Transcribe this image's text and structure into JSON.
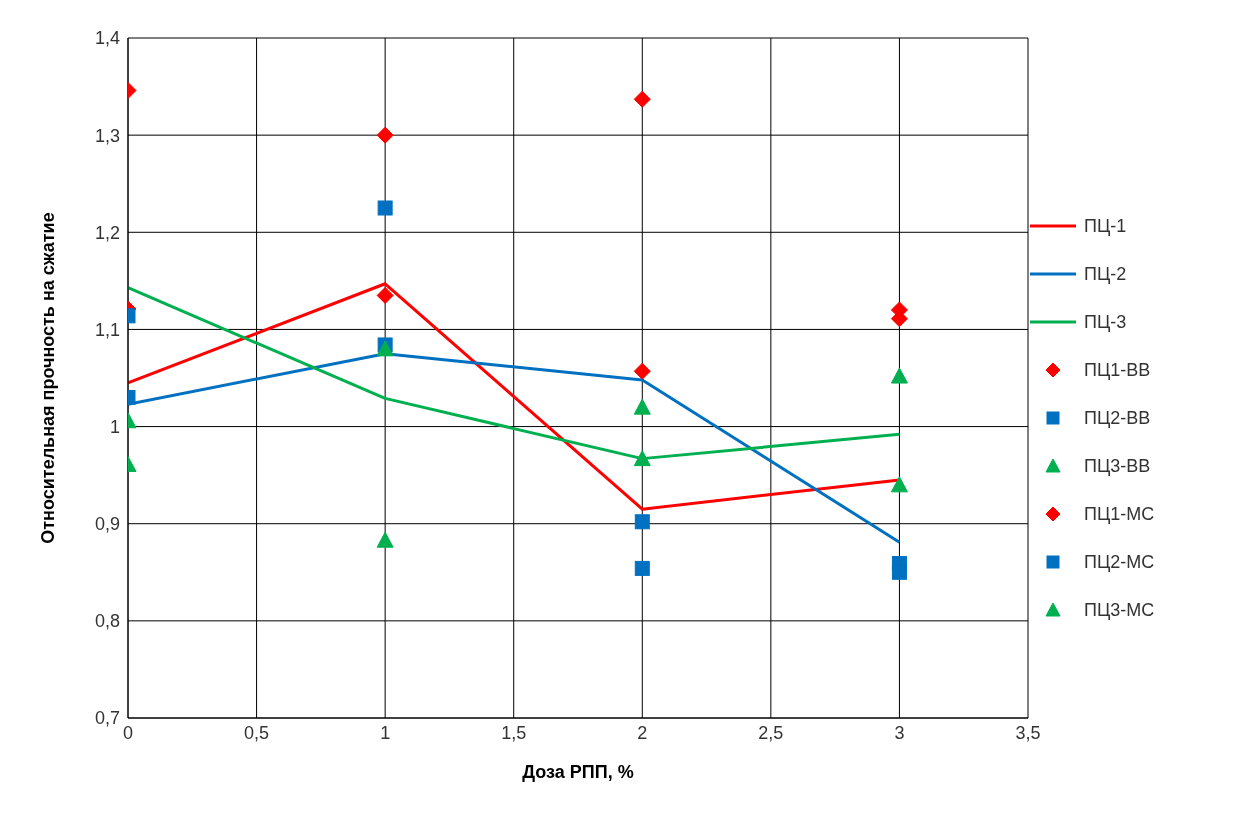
{
  "chart_data": {
    "type": "line",
    "xlabel": "Доза РПП, %",
    "ylabel": "Относительная прочность на сжатие",
    "x": [
      0,
      1,
      2,
      3
    ],
    "xlim": [
      0,
      3.5
    ],
    "xticks": [
      0,
      {
        "value": 0.5,
        "label": "0,5"
      },
      1,
      {
        "value": 1.5,
        "label": "1,5"
      },
      2,
      {
        "value": 2.5,
        "label": "2,5"
      },
      3,
      {
        "value": 3.5,
        "label": "3,5"
      }
    ],
    "ylim": [
      0.7,
      1.4
    ],
    "yticks": [
      {
        "value": 0.7,
        "label": "0,7"
      },
      {
        "value": 0.8,
        "label": "0,8"
      },
      {
        "value": 0.9,
        "label": "0,9"
      },
      1,
      {
        "value": 1.1,
        "label": "1,1"
      },
      {
        "value": 1.2,
        "label": "1,2"
      },
      {
        "value": 1.3,
        "label": "1,3"
      },
      {
        "value": 1.4,
        "label": "1,4"
      }
    ],
    "grid": true,
    "legend": "right",
    "marker": "none",
    "line_style": "solid",
    "series": [
      {
        "name": "ПЦ-1",
        "color": "#ff0000",
        "values": [
          1.045,
          1.147,
          0.915,
          0.945
        ]
      },
      {
        "name": "ПЦ-2",
        "color": "#0070c0",
        "values": [
          1.023,
          1.075,
          1.048,
          0.881
        ]
      },
      {
        "name": "ПЦ-3",
        "color": "#00b050",
        "values": [
          1.143,
          1.029,
          0.967,
          0.992
        ]
      },
      {
        "name": "ПЦ1-ВВ",
        "type": "scatter",
        "marker": "diamond",
        "color": "#ff0000",
        "values": [
          1.346,
          1.3,
          1.337,
          1.12
        ]
      },
      {
        "name": "ПЦ2-ВВ",
        "type": "scatter",
        "marker": "square",
        "color": "#0070c0",
        "values": [
          1.03,
          1.084,
          0.854,
          0.859
        ]
      },
      {
        "name": "ПЦ3-ВВ",
        "type": "scatter",
        "marker": "triangle",
        "color": "#00b050",
        "values": [
          1.006,
          0.883,
          0.967,
          1.052
        ]
      },
      {
        "name": "ПЦ1-МС",
        "type": "scatter",
        "marker": "diamond",
        "color": "#ff0000",
        "values": [
          1.121,
          1.135,
          1.057,
          1.111
        ]
      },
      {
        "name": "ПЦ2-МС",
        "type": "scatter",
        "marker": "square",
        "color": "#0070c0",
        "values": [
          1.114,
          1.225,
          0.902,
          0.85
        ]
      },
      {
        "name": "ПЦ3-МС",
        "type": "scatter",
        "marker": "triangle",
        "color": "#00b050",
        "values": [
          0.961,
          1.08,
          1.02,
          0.94
        ]
      }
    ]
  }
}
